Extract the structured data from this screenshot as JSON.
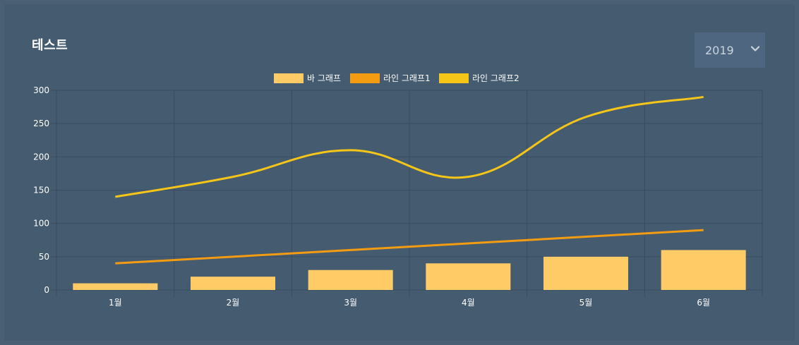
{
  "header": {
    "title": "테스트",
    "year_select": {
      "value": "2019",
      "icon": "chevron-down-icon"
    }
  },
  "colors": {
    "background": "#455b70",
    "bar": "#ffcb66",
    "line1": "#f39c12",
    "line2": "#f5c518",
    "grid": "#3a4d60",
    "text": "#ffffff"
  },
  "chart_data": {
    "type": "bar",
    "categories": [
      "1월",
      "2월",
      "3월",
      "4월",
      "5월",
      "6월"
    ],
    "ylim": [
      0,
      300
    ],
    "yticks": [
      0,
      50,
      100,
      150,
      200,
      250,
      300
    ],
    "legend_position": "top",
    "grid": true,
    "series": [
      {
        "name": "바 그래프",
        "type": "bar",
        "values": [
          10,
          20,
          30,
          40,
          50,
          60
        ]
      },
      {
        "name": "라인 그래프1",
        "type": "line",
        "values": [
          40,
          50,
          60,
          70,
          80,
          90
        ]
      },
      {
        "name": "라인 그래프2",
        "type": "line",
        "values": [
          140,
          170,
          210,
          170,
          260,
          290
        ]
      }
    ]
  }
}
